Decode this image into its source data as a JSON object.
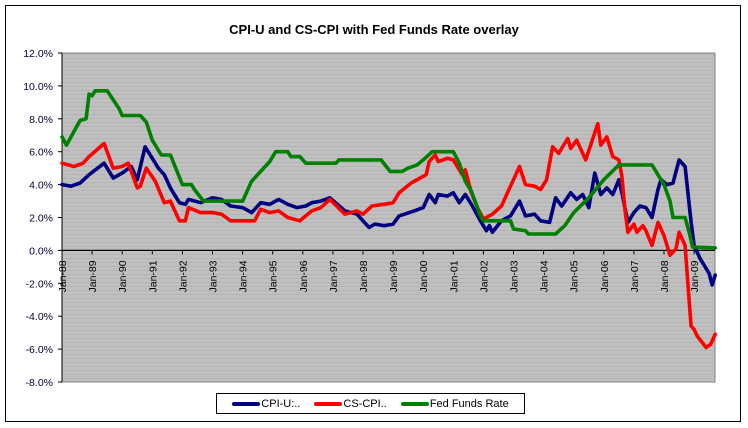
{
  "chart_data": {
    "type": "line",
    "title": "CPI-U and CS-CPI with Fed Funds Rate overlay",
    "xlabel": "",
    "ylabel": "",
    "ylim": [
      -8,
      12
    ],
    "xlim": [
      1988,
      2009.7
    ],
    "y_ticks": [
      "12.0%",
      "10.0%",
      "8.0%",
      "6.0%",
      "4.0%",
      "2.0%",
      "0.0%",
      "-2.0%",
      "-4.0%",
      "-6.0%",
      "-8.0%"
    ],
    "y_tick_values": [
      12,
      10,
      8,
      6,
      4,
      2,
      0,
      -2,
      -4,
      -6,
      -8
    ],
    "x_ticks": [
      "Jan-88",
      "Jan-89",
      "Jan-90",
      "Jan-91",
      "Jan-92",
      "Jan-93",
      "Jan-94",
      "Jan-95",
      "Jan-96",
      "Jan-97",
      "Jan-98",
      "Jan-99",
      "Jan-00",
      "Jan-01",
      "Jan-02",
      "Jan-03",
      "Jan-04",
      "Jan-05",
      "Jan-06",
      "Jan-07",
      "Jan-08",
      "Jan-09"
    ],
    "x_tick_values": [
      1988,
      1989,
      1990,
      1991,
      1992,
      1993,
      1994,
      1995,
      1996,
      1997,
      1998,
      1999,
      2000,
      2001,
      2002,
      2003,
      2004,
      2005,
      2006,
      2007,
      2008,
      2009
    ],
    "grid": false,
    "legend_position": "bottom",
    "series": [
      {
        "name": "CPI-U:..",
        "color": "#000080",
        "points": [
          [
            1988.0,
            4.0
          ],
          [
            1988.3,
            3.9
          ],
          [
            1988.6,
            4.1
          ],
          [
            1988.9,
            4.6
          ],
          [
            1989.4,
            5.3
          ],
          [
            1989.7,
            4.4
          ],
          [
            1990.0,
            4.7
          ],
          [
            1990.3,
            5.1
          ],
          [
            1990.5,
            4.3
          ],
          [
            1990.76,
            6.3
          ],
          [
            1991.0,
            5.6
          ],
          [
            1991.2,
            5.0
          ],
          [
            1991.4,
            4.6
          ],
          [
            1991.6,
            3.8
          ],
          [
            1991.9,
            2.9
          ],
          [
            1992.1,
            2.8
          ],
          [
            1992.2,
            3.1
          ],
          [
            1992.6,
            2.9
          ],
          [
            1993.0,
            3.2
          ],
          [
            1993.3,
            3.1
          ],
          [
            1993.6,
            2.7
          ],
          [
            1994.0,
            2.6
          ],
          [
            1994.3,
            2.3
          ],
          [
            1994.6,
            2.9
          ],
          [
            1994.9,
            2.8
          ],
          [
            1995.2,
            3.1
          ],
          [
            1995.5,
            2.8
          ],
          [
            1995.8,
            2.6
          ],
          [
            1996.1,
            2.7
          ],
          [
            1996.3,
            2.9
          ],
          [
            1996.6,
            3.0
          ],
          [
            1996.9,
            3.2
          ],
          [
            1997.4,
            2.4
          ],
          [
            1997.8,
            2.2
          ],
          [
            1998.2,
            1.4
          ],
          [
            1998.4,
            1.6
          ],
          [
            1998.7,
            1.5
          ],
          [
            1999.0,
            1.6
          ],
          [
            1999.2,
            2.1
          ],
          [
            1999.7,
            2.4
          ],
          [
            2000.0,
            2.6
          ],
          [
            2000.2,
            3.4
          ],
          [
            2000.4,
            2.9
          ],
          [
            2000.5,
            3.4
          ],
          [
            2000.8,
            3.3
          ],
          [
            2001.0,
            3.5
          ],
          [
            2001.2,
            2.9
          ],
          [
            2001.4,
            3.4
          ],
          [
            2001.6,
            2.8
          ],
          [
            2001.9,
            1.8
          ],
          [
            2002.1,
            1.2
          ],
          [
            2002.2,
            1.5
          ],
          [
            2002.3,
            1.1
          ],
          [
            2002.6,
            1.8
          ],
          [
            2002.9,
            2.1
          ],
          [
            2003.2,
            3.0
          ],
          [
            2003.4,
            2.1
          ],
          [
            2003.7,
            2.2
          ],
          [
            2003.9,
            1.8
          ],
          [
            2004.2,
            1.7
          ],
          [
            2004.4,
            3.2
          ],
          [
            2004.6,
            2.7
          ],
          [
            2004.9,
            3.5
          ],
          [
            2005.1,
            3.1
          ],
          [
            2005.3,
            3.4
          ],
          [
            2005.5,
            2.6
          ],
          [
            2005.7,
            4.7
          ],
          [
            2005.9,
            3.4
          ],
          [
            2006.1,
            3.8
          ],
          [
            2006.3,
            3.4
          ],
          [
            2006.5,
            4.3
          ],
          [
            2006.6,
            3.5
          ],
          [
            2006.8,
            1.7
          ],
          [
            2007.0,
            2.3
          ],
          [
            2007.2,
            2.7
          ],
          [
            2007.4,
            2.6
          ],
          [
            2007.6,
            2.0
          ],
          [
            2007.8,
            3.7
          ],
          [
            2007.9,
            4.3
          ],
          [
            2008.1,
            4.0
          ],
          [
            2008.3,
            4.1
          ],
          [
            2008.5,
            5.5
          ],
          [
            2008.7,
            5.1
          ],
          [
            2008.9,
            1.7
          ],
          [
            2009.0,
            0.3
          ],
          [
            2009.2,
            -0.5
          ],
          [
            2009.5,
            -1.4
          ],
          [
            2009.6,
            -2.1
          ],
          [
            2009.7,
            -1.5
          ]
        ]
      },
      {
        "name": "CS-CPI..",
        "color": "#FF0000",
        "points": [
          [
            1988.0,
            5.3
          ],
          [
            1988.4,
            5.1
          ],
          [
            1988.7,
            5.3
          ],
          [
            1988.9,
            5.7
          ],
          [
            1989.4,
            6.5
          ],
          [
            1989.7,
            5.0
          ],
          [
            1990.0,
            5.1
          ],
          [
            1990.2,
            5.3
          ],
          [
            1990.5,
            3.8
          ],
          [
            1990.6,
            3.9
          ],
          [
            1990.8,
            5.0
          ],
          [
            1991.1,
            4.2
          ],
          [
            1991.4,
            2.9
          ],
          [
            1991.6,
            3.0
          ],
          [
            1991.9,
            1.8
          ],
          [
            1992.1,
            1.8
          ],
          [
            1992.2,
            2.6
          ],
          [
            1992.6,
            2.3
          ],
          [
            1993.0,
            2.3
          ],
          [
            1993.3,
            2.2
          ],
          [
            1993.6,
            1.8
          ],
          [
            1994.0,
            1.8
          ],
          [
            1994.4,
            1.8
          ],
          [
            1994.6,
            2.5
          ],
          [
            1994.9,
            2.3
          ],
          [
            1995.2,
            2.4
          ],
          [
            1995.5,
            2.0
          ],
          [
            1995.9,
            1.8
          ],
          [
            1996.3,
            2.4
          ],
          [
            1996.6,
            2.6
          ],
          [
            1996.9,
            3.1
          ],
          [
            1997.4,
            2.2
          ],
          [
            1997.8,
            2.4
          ],
          [
            1998.0,
            2.2
          ],
          [
            1998.3,
            2.7
          ],
          [
            1998.7,
            2.8
          ],
          [
            1999.0,
            2.9
          ],
          [
            1999.2,
            3.5
          ],
          [
            1999.6,
            4.1
          ],
          [
            2000.1,
            4.6
          ],
          [
            2000.2,
            5.4
          ],
          [
            2000.4,
            5.8
          ],
          [
            2000.5,
            5.4
          ],
          [
            2000.8,
            5.6
          ],
          [
            2001.0,
            5.5
          ],
          [
            2001.3,
            4.6
          ],
          [
            2001.4,
            4.9
          ],
          [
            2001.6,
            3.5
          ],
          [
            2001.8,
            2.6
          ],
          [
            2002.0,
            1.9
          ],
          [
            2002.3,
            2.2
          ],
          [
            2002.6,
            2.7
          ],
          [
            2002.8,
            3.5
          ],
          [
            2003.2,
            5.1
          ],
          [
            2003.4,
            4.0
          ],
          [
            2003.7,
            3.9
          ],
          [
            2003.9,
            3.7
          ],
          [
            2004.1,
            4.3
          ],
          [
            2004.3,
            6.3
          ],
          [
            2004.5,
            5.9
          ],
          [
            2004.8,
            6.8
          ],
          [
            2004.9,
            6.2
          ],
          [
            2005.1,
            6.7
          ],
          [
            2005.4,
            5.5
          ],
          [
            2005.8,
            7.7
          ],
          [
            2005.9,
            6.4
          ],
          [
            2006.1,
            6.9
          ],
          [
            2006.3,
            5.7
          ],
          [
            2006.5,
            5.5
          ],
          [
            2006.6,
            4.5
          ],
          [
            2006.7,
            2.5
          ],
          [
            2006.8,
            1.1
          ],
          [
            2007.0,
            1.6
          ],
          [
            2007.1,
            1.1
          ],
          [
            2007.3,
            1.5
          ],
          [
            2007.4,
            1.2
          ],
          [
            2007.6,
            0.3
          ],
          [
            2007.8,
            1.7
          ],
          [
            2008.0,
            0.9
          ],
          [
            2008.2,
            -0.3
          ],
          [
            2008.4,
            0.1
          ],
          [
            2008.5,
            1.1
          ],
          [
            2008.7,
            0.3
          ],
          [
            2008.8,
            -2.2
          ],
          [
            2008.9,
            -4.6
          ],
          [
            2009.0,
            -4.8
          ],
          [
            2009.1,
            -5.2
          ],
          [
            2009.4,
            -5.9
          ],
          [
            2009.55,
            -5.7
          ],
          [
            2009.7,
            -5.1
          ]
        ]
      },
      {
        "name": "Fed Funds Rate",
        "color": "#008000",
        "points": [
          [
            1988.0,
            6.9
          ],
          [
            1988.15,
            6.4
          ],
          [
            1988.6,
            7.9
          ],
          [
            1988.8,
            8.0
          ],
          [
            1988.9,
            9.5
          ],
          [
            1989.0,
            9.4
          ],
          [
            1989.1,
            9.7
          ],
          [
            1989.5,
            9.7
          ],
          [
            1989.9,
            8.6
          ],
          [
            1990.0,
            8.2
          ],
          [
            1990.6,
            8.2
          ],
          [
            1990.8,
            7.8
          ],
          [
            1991.0,
            6.7
          ],
          [
            1991.3,
            5.8
          ],
          [
            1991.6,
            5.8
          ],
          [
            1992.0,
            4.0
          ],
          [
            1992.3,
            4.0
          ],
          [
            1992.4,
            3.7
          ],
          [
            1992.7,
            3.0
          ],
          [
            1994.0,
            3.0
          ],
          [
            1994.3,
            4.2
          ],
          [
            1994.6,
            4.8
          ],
          [
            1994.9,
            5.4
          ],
          [
            1995.1,
            6.0
          ],
          [
            1995.5,
            6.0
          ],
          [
            1995.6,
            5.7
          ],
          [
            1995.9,
            5.7
          ],
          [
            1996.1,
            5.3
          ],
          [
            1997.1,
            5.3
          ],
          [
            1997.2,
            5.5
          ],
          [
            1998.6,
            5.5
          ],
          [
            1998.9,
            4.8
          ],
          [
            1999.3,
            4.8
          ],
          [
            1999.5,
            5.0
          ],
          [
            1999.8,
            5.2
          ],
          [
            2000.0,
            5.5
          ],
          [
            2000.3,
            6.0
          ],
          [
            2001.0,
            6.0
          ],
          [
            2001.2,
            5.3
          ],
          [
            2001.4,
            4.2
          ],
          [
            2001.6,
            3.6
          ],
          [
            2001.9,
            2.1
          ],
          [
            2002.0,
            1.8
          ],
          [
            2002.9,
            1.8
          ],
          [
            2003.0,
            1.3
          ],
          [
            2003.4,
            1.2
          ],
          [
            2003.5,
            1.0
          ],
          [
            2004.4,
            1.0
          ],
          [
            2004.7,
            1.5
          ],
          [
            2005.0,
            2.3
          ],
          [
            2005.5,
            3.2
          ],
          [
            2006.0,
            4.3
          ],
          [
            2006.5,
            5.2
          ],
          [
            2007.6,
            5.2
          ],
          [
            2007.9,
            4.3
          ],
          [
            2008.0,
            4.0
          ],
          [
            2008.2,
            3.0
          ],
          [
            2008.3,
            2.0
          ],
          [
            2008.7,
            2.0
          ],
          [
            2008.85,
            1.0
          ],
          [
            2008.95,
            0.2
          ],
          [
            2009.7,
            0.15
          ]
        ]
      }
    ]
  }
}
